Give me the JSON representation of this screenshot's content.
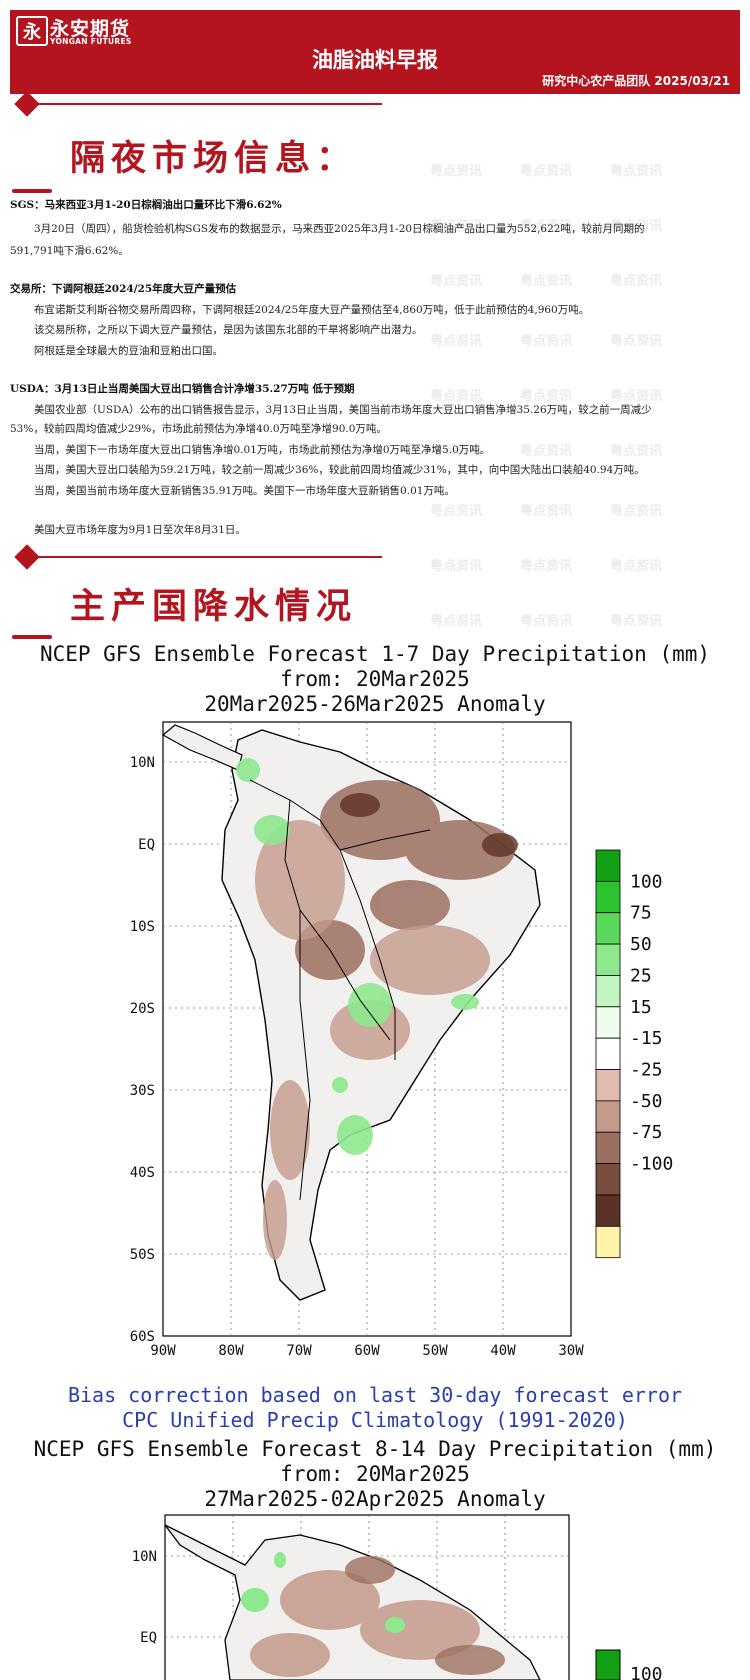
{
  "header": {
    "logo_cn": "永安期货",
    "logo_en": "YONGAN FUTURES",
    "title": "油脂油料早报",
    "team_date": "研究中心农产品团队  2025/03/21",
    "color": "#b3141e"
  },
  "section1": {
    "title": "隔夜市场信息：",
    "items": [
      {
        "head": "SGS：马来西亚3月1-20日棕榈油出口量环比下滑6.62%",
        "lines": [
          "3月20日（周四），船货检验机构SGS发布的数据显示，马来西亚2025年3月1-20日棕榈油产品出口量为552,622吨，较前月同期的",
          "591,791吨下滑6.62%。"
        ]
      },
      {
        "head": "交易所：下调阿根廷2024/25年度大豆产量预估",
        "lines": [
          "布宜诺斯艾利斯谷物交易所周四称，下调阿根廷2024/25年度大豆产量预估至4,860万吨，低于此前预估的4,960万吨。",
          "该交易所称，之所以下调大豆产量预估，是因为该国东北部的干旱将影响产出潜力。",
          "阿根廷是全球最大的豆油和豆粕出口国。"
        ]
      },
      {
        "head": "USDA：3月13日止当周美国大豆出口销售合计净增35.27万吨 低于预期",
        "lines": [
          "美国农业部（USDA）公布的出口销售报告显示，3月13日止当周，美国当前市场年度大豆出口销售净增35.26万吨，较之前一周减少",
          "53%，较前四周均值减少29%，市场此前预估为净增40.0万吨至净增90.0万吨。",
          "当周，美国下一市场年度大豆出口销售净增0.01万吨，市场此前预估为净增0万吨至净增5.0万吨。",
          "当周，美国大豆出口装船为59.21万吨，较之前一周减少36%，较此前四周均值减少31%，其中，向中国大陆出口装船40.94万吨。",
          "当周，美国当前市场年度大豆新销售35.91万吨。美国下一市场年度大豆新销售0.01万吨。"
        ]
      },
      {
        "head": "",
        "lines": [
          "美国大豆市场年度为9月1日至次年8月31日。"
        ]
      }
    ]
  },
  "section2": {
    "title": "主产国降水情况"
  },
  "map1": {
    "title1": "NCEP GFS Ensemble Forecast 1-7 Day Precipitation (mm)",
    "title2": "from: 20Mar2025",
    "title3": "20Mar2025-26Mar2025 Anomaly",
    "lat_labels": [
      "10N",
      "EQ",
      "10S",
      "20S",
      "30S",
      "40S",
      "50S",
      "60S"
    ],
    "lon_labels": [
      "90W",
      "80W",
      "70W",
      "60W",
      "50W",
      "40W",
      "30W"
    ],
    "legend_labels": [
      "100",
      "75",
      "50",
      "25",
      "15",
      "-15",
      "-25",
      "-50",
      "-75",
      "-100"
    ],
    "legend_colors": [
      "#14a014",
      "#2cc42c",
      "#5ad85a",
      "#8ee88e",
      "#c2f5c2",
      "#eefcee",
      "#ffffff",
      "#e0bcb0",
      "#c49a8a",
      "#9c7060",
      "#7a4c3c",
      "#5c3226",
      "#fff4aa"
    ],
    "footer1": "Bias correction based on last 30-day forecast error",
    "footer2": "CPC Unified Precip Climatology (1991-2020)"
  },
  "map2": {
    "title1": "NCEP GFS Ensemble Forecast 8-14 Day Precipitation (mm)",
    "title2": "from: 20Mar2025",
    "title3": "27Mar2025-02Apr2025 Anomaly",
    "lat_labels": [
      "10N",
      "EQ"
    ],
    "legend_labels": [
      "100"
    ]
  },
  "watermark": {
    "text": "粤点资讯"
  }
}
